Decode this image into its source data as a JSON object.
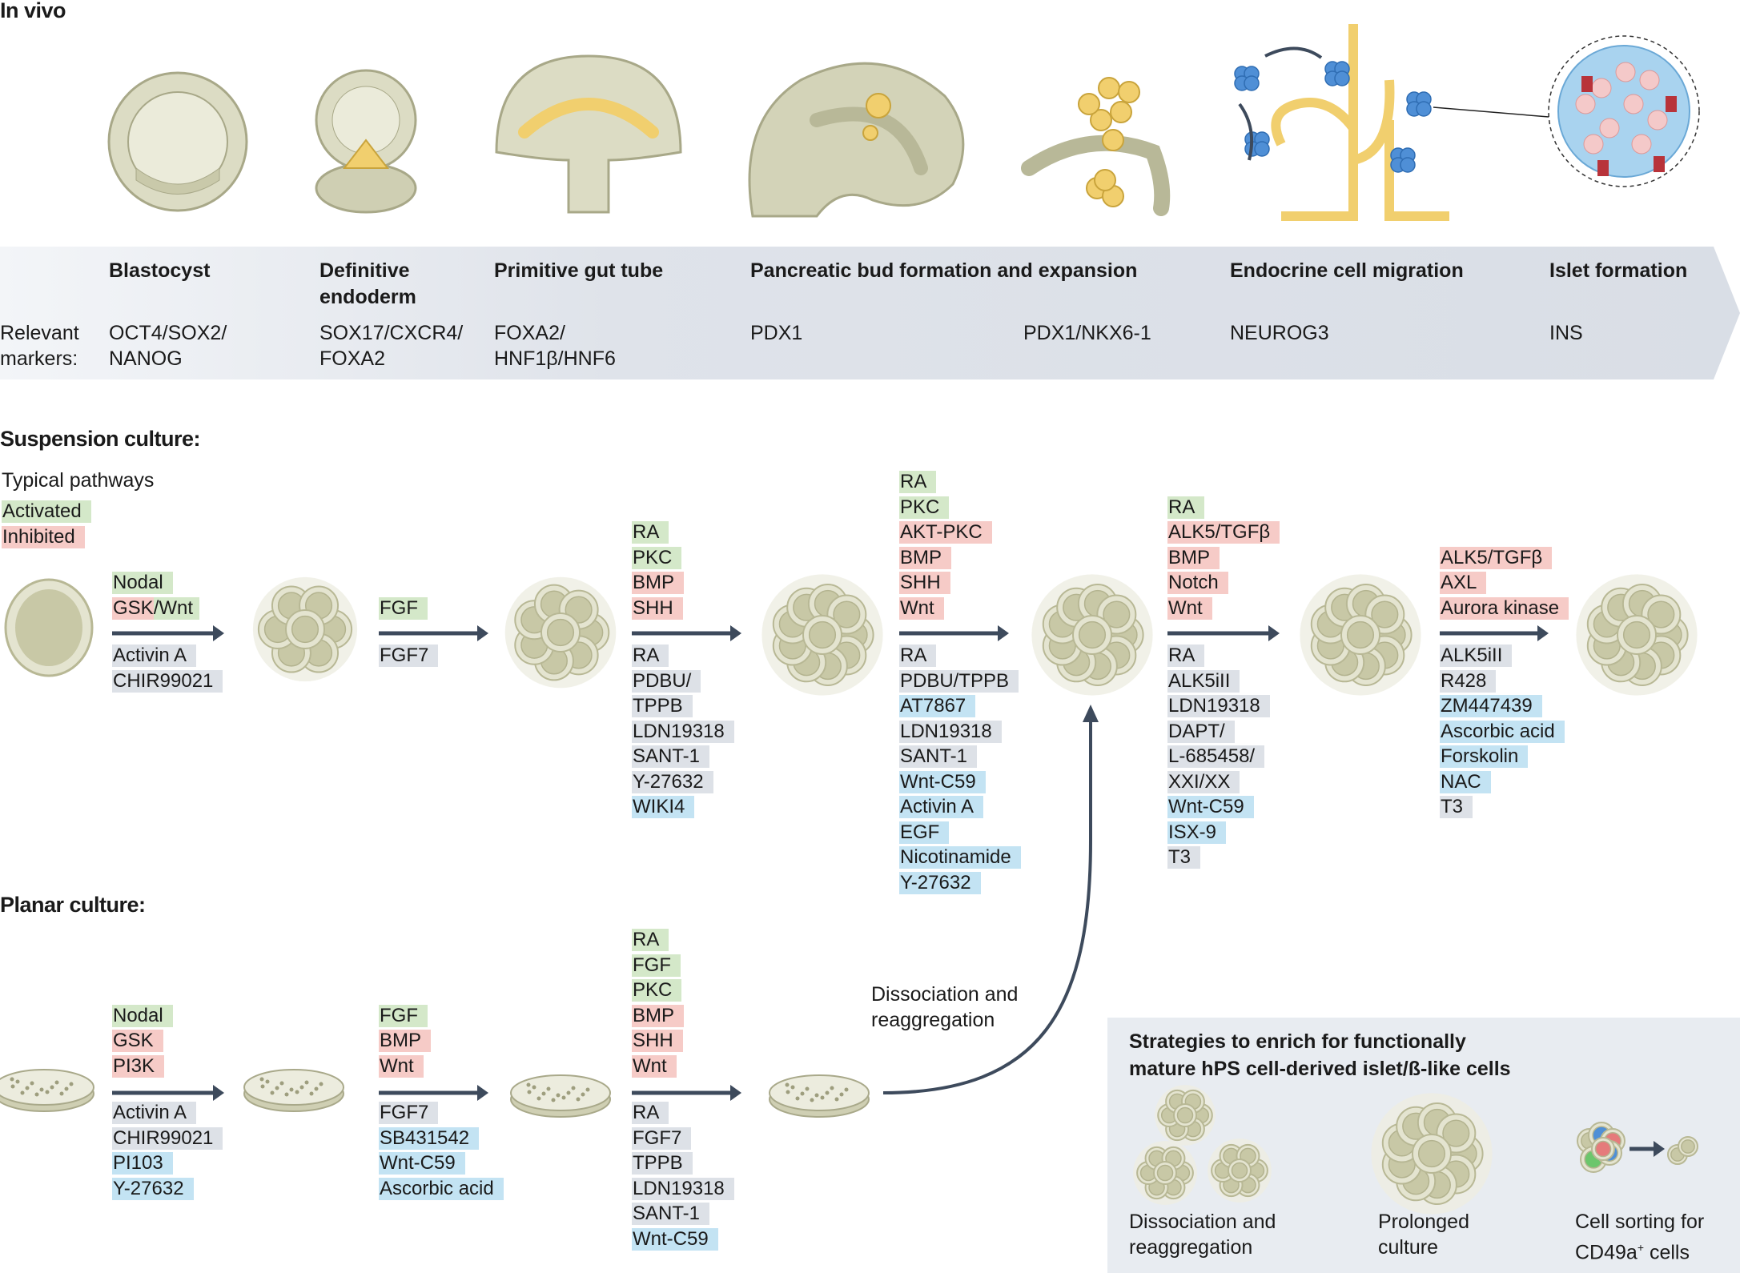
{
  "in_vivo": {
    "title": "In vivo",
    "markers_label_1": "Relevant",
    "markers_label_2": "markers:",
    "stages": [
      {
        "name": "Blastocyst",
        "markers": [
          "OCT4/SOX2/",
          "NANOG"
        ]
      },
      {
        "name": "Definitive endoderm",
        "markers": [
          "SOX17/CXCR4/",
          "FOXA2"
        ]
      },
      {
        "name": "Primitive gut tube",
        "markers": [
          "FOXA2/",
          "HNF1β/HNF6"
        ]
      },
      {
        "name": "Pancreatic bud formation and expansion",
        "markers": [
          "PDX1"
        ]
      },
      {
        "name": "",
        "markers": [
          "PDX1/NKX6-1"
        ]
      },
      {
        "name": "Endocrine cell migration",
        "markers": [
          "NEUROG3"
        ]
      },
      {
        "name": "Islet formation",
        "markers": [
          "INS"
        ]
      }
    ]
  },
  "legend": {
    "title": "Typical pathways",
    "activated": "Activated",
    "inhibited": "Inhibited"
  },
  "colors": {
    "activated": "#d4e8c9",
    "inhibited": "#f6cbc7",
    "compound": "#dde1e7",
    "added": "#c3e3f3",
    "arrow": "#3d4a5c",
    "cell": "#c8c8a6"
  },
  "suspension": {
    "title": "Suspension culture:",
    "steps": [
      {
        "pathways": [
          {
            "text": "Nodal",
            "type": "activated"
          },
          {
            "segments": [
              {
                "text": "GSK",
                "type": "inhibited"
              },
              {
                "text": "/Wnt",
                "type": "activated"
              }
            ]
          }
        ],
        "compounds": [
          {
            "text": "Activin A",
            "type": "compound"
          },
          {
            "text": "CHIR99021",
            "type": "compound"
          }
        ]
      },
      {
        "pathways": [
          {
            "text": "FGF",
            "type": "activated"
          }
        ],
        "compounds": [
          {
            "text": "FGF7",
            "type": "compound"
          }
        ]
      },
      {
        "pathways": [
          {
            "text": "RA",
            "type": "activated"
          },
          {
            "text": "PKC",
            "type": "activated"
          },
          {
            "text": "BMP",
            "type": "inhibited"
          },
          {
            "text": "SHH",
            "type": "inhibited"
          }
        ],
        "compounds": [
          {
            "text": "RA",
            "type": "compound"
          },
          {
            "text": "PDBU/",
            "type": "compound"
          },
          {
            "text": "TPPB",
            "type": "compound"
          },
          {
            "text": "LDN19318",
            "type": "compound"
          },
          {
            "text": "SANT-1",
            "type": "compound"
          },
          {
            "text": "Y-27632",
            "type": "compound"
          },
          {
            "text": "WIKI4",
            "type": "added"
          }
        ]
      },
      {
        "pathways": [
          {
            "text": "RA",
            "type": "activated"
          },
          {
            "text": "PKC",
            "type": "activated"
          },
          {
            "text": "AKT-PKC",
            "type": "inhibited"
          },
          {
            "text": "BMP",
            "type": "inhibited"
          },
          {
            "text": "SHH",
            "type": "inhibited"
          },
          {
            "text": "Wnt",
            "type": "inhibited"
          }
        ],
        "compounds": [
          {
            "text": "RA",
            "type": "compound"
          },
          {
            "text": "PDBU/TPPB",
            "type": "compound"
          },
          {
            "text": "AT7867",
            "type": "added"
          },
          {
            "text": "LDN19318",
            "type": "compound"
          },
          {
            "text": "SANT-1",
            "type": "compound"
          },
          {
            "text": "Wnt-C59",
            "type": "added"
          },
          {
            "text": "Activin A",
            "type": "added"
          },
          {
            "text": "EGF",
            "type": "added"
          },
          {
            "text": "Nicotinamide",
            "type": "added"
          },
          {
            "text": "Y-27632",
            "type": "added"
          }
        ]
      },
      {
        "pathways": [
          {
            "text": "RA",
            "type": "activated"
          },
          {
            "text": "ALK5/TGFβ",
            "type": "inhibited"
          },
          {
            "text": "BMP",
            "type": "inhibited"
          },
          {
            "text": "Notch",
            "type": "inhibited"
          },
          {
            "text": "Wnt",
            "type": "inhibited"
          }
        ],
        "compounds": [
          {
            "text": "RA",
            "type": "compound"
          },
          {
            "text": "ALK5iII",
            "type": "compound"
          },
          {
            "text": "LDN19318",
            "type": "compound"
          },
          {
            "text": "DAPT/",
            "type": "compound"
          },
          {
            "text": "L-685458/",
            "type": "compound"
          },
          {
            "text": "XXI/XX",
            "type": "compound"
          },
          {
            "text": "Wnt-C59",
            "type": "added"
          },
          {
            "text": "ISX-9",
            "type": "added"
          },
          {
            "text": "T3",
            "type": "compound"
          }
        ]
      },
      {
        "pathways": [
          {
            "text": "ALK5/TGFβ",
            "type": "inhibited"
          },
          {
            "text": "AXL",
            "type": "inhibited"
          },
          {
            "text": "Aurora kinase",
            "type": "inhibited"
          }
        ],
        "compounds": [
          {
            "text": "ALK5iII",
            "type": "compound"
          },
          {
            "text": "R428",
            "type": "compound"
          },
          {
            "text": "ZM447439",
            "type": "added"
          },
          {
            "text": "Ascorbic acid",
            "type": "added"
          },
          {
            "text": "Forskolin",
            "type": "added"
          },
          {
            "text": "NAC",
            "type": "added"
          },
          {
            "text": "T3",
            "type": "compound"
          }
        ]
      }
    ]
  },
  "planar": {
    "title": "Planar culture:",
    "transfer_label_1": "Dissociation and",
    "transfer_label_2": "reaggregation",
    "steps": [
      {
        "pathways": [
          {
            "text": "Nodal",
            "type": "activated"
          },
          {
            "text": "GSK",
            "type": "inhibited"
          },
          {
            "text": "PI3K",
            "type": "inhibited"
          }
        ],
        "compounds": [
          {
            "text": "Activin A",
            "type": "compound"
          },
          {
            "text": "CHIR99021",
            "type": "compound"
          },
          {
            "text": "PI103",
            "type": "added"
          },
          {
            "text": "Y-27632",
            "type": "added"
          }
        ]
      },
      {
        "pathways": [
          {
            "text": "FGF",
            "type": "activated"
          },
          {
            "text": "BMP",
            "type": "inhibited"
          },
          {
            "text": "Wnt",
            "type": "inhibited"
          }
        ],
        "compounds": [
          {
            "text": "FGF7",
            "type": "compound"
          },
          {
            "text": "SB431542",
            "type": "added"
          },
          {
            "text": "Wnt-C59",
            "type": "added"
          },
          {
            "text": "Ascorbic acid",
            "type": "added"
          }
        ]
      },
      {
        "pathways": [
          {
            "text": "RA",
            "type": "activated"
          },
          {
            "text": "FGF",
            "type": "activated"
          },
          {
            "text": "PKC",
            "type": "activated"
          },
          {
            "text": "BMP",
            "type": "inhibited"
          },
          {
            "text": "SHH",
            "type": "inhibited"
          },
          {
            "text": "Wnt",
            "type": "inhibited"
          }
        ],
        "compounds": [
          {
            "text": "RA",
            "type": "compound"
          },
          {
            "text": "FGF7",
            "type": "compound"
          },
          {
            "text": "TPPB",
            "type": "compound"
          },
          {
            "text": "LDN19318",
            "type": "compound"
          },
          {
            "text": "SANT-1",
            "type": "compound"
          },
          {
            "text": "Wnt-C59",
            "type": "added"
          }
        ]
      }
    ]
  },
  "strategies": {
    "title_1": "Strategies to enrich for functionally",
    "title_2": "mature hPS cell-derived islet/ß-like cells",
    "items": [
      {
        "line1": "Dissociation and",
        "line2": "reaggregation"
      },
      {
        "line1": "Prolonged",
        "line2": "culture"
      },
      {
        "line1": "Cell sorting for",
        "line2": "CD49a",
        "sup": "+",
        "line2_tail": " cells"
      }
    ]
  }
}
